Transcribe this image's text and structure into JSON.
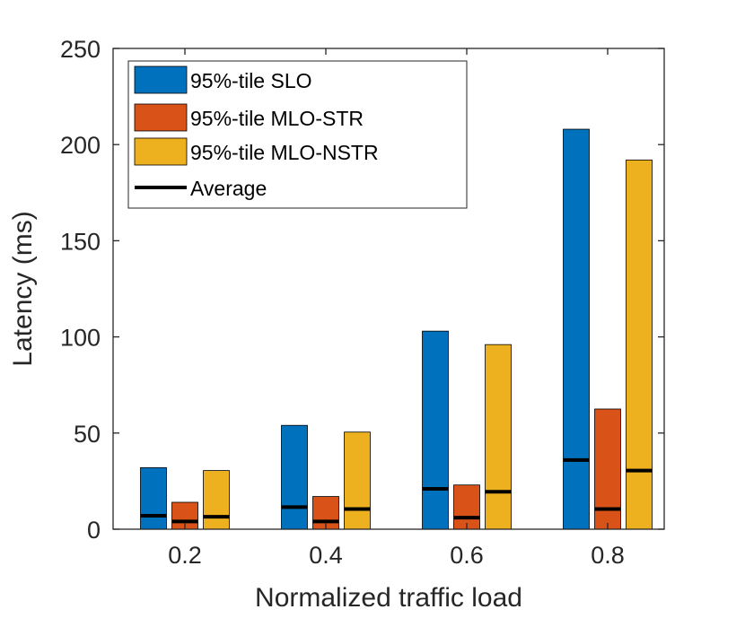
{
  "chart_data": {
    "type": "bar",
    "title": "",
    "xlabel": "Normalized traffic load",
    "ylabel": "Latency (ms)",
    "categories": [
      "0.2",
      "0.4",
      "0.6",
      "0.8"
    ],
    "ylim": [
      0,
      250
    ],
    "yticks": [
      "0",
      "50",
      "100",
      "150",
      "200",
      "250"
    ],
    "grid": false,
    "legend_position": "top-left",
    "series": [
      {
        "name": "95%-tile SLO",
        "color": "#0072BD",
        "values": [
          32,
          54,
          103,
          208
        ],
        "average": [
          7,
          11.5,
          21,
          36
        ]
      },
      {
        "name": "95%-tile MLO-STR",
        "color": "#D95319",
        "values": [
          14,
          17,
          23,
          62.5
        ],
        "average": [
          4,
          4,
          6,
          10.5
        ]
      },
      {
        "name": "95%-tile MLO-NSTR",
        "color": "#EDB120",
        "values": [
          30.5,
          50.5,
          96,
          192
        ],
        "average": [
          6.5,
          10.5,
          19.5,
          30.5
        ]
      }
    ],
    "average_legend_label": "Average"
  }
}
